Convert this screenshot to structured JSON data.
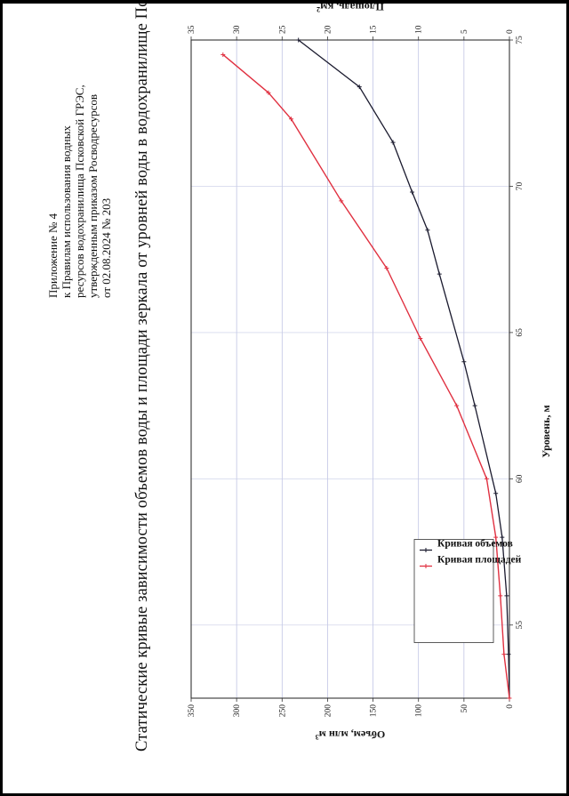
{
  "appendix": {
    "heading": "Приложение № 4",
    "lines": [
      "к    Правилам    использования    водных",
      "ресурсов водохранилища Псковской ГРЭС,",
      "утвержденным   приказом   Росводресурсов",
      "от 02.08.2024 № 203"
    ]
  },
  "title": "Статические кривые зависимости объемов воды и площади зеркала от уровней воды в водохранилище Псковской ГРЭС",
  "chart_data": {
    "type": "line",
    "y": {
      "label": "Уровень, м",
      "range": [
        52.5,
        75
      ],
      "ticks": [
        55,
        60,
        65,
        70,
        75
      ]
    },
    "x_top": {
      "label": "Объем, млн м",
      "label_sup": "3",
      "range": [
        0,
        350
      ],
      "ticks": [
        0,
        50,
        100,
        150,
        200,
        250,
        300,
        350
      ]
    },
    "x_bottom": {
      "label": "Площадь, км",
      "label_sup": "2",
      "range": [
        0,
        35
      ],
      "ticks": [
        0,
        5,
        10,
        15,
        20,
        25,
        30,
        35
      ]
    },
    "grid": true,
    "legend": {
      "position": "bottom-left"
    },
    "series": [
      {
        "name": "Кривая объемов",
        "axis": "x_top",
        "color": "#1a1a2e",
        "marker": "+",
        "points": [
          [
            0,
            52.5
          ],
          [
            1,
            54
          ],
          [
            3,
            56
          ],
          [
            8,
            58
          ],
          [
            15,
            59.5
          ],
          [
            38,
            62.5
          ],
          [
            50,
            64
          ],
          [
            77,
            67
          ],
          [
            90,
            68.5
          ],
          [
            107,
            69.8
          ],
          [
            128,
            71.5
          ],
          [
            165,
            73.4
          ],
          [
            232,
            75
          ]
        ]
      },
      {
        "name": "Кривая площадей",
        "axis": "x_bottom",
        "color": "#e03040",
        "marker": "+",
        "points": [
          [
            0,
            52.5
          ],
          [
            0.6,
            54
          ],
          [
            1,
            56
          ],
          [
            1.5,
            58
          ],
          [
            2.5,
            60
          ],
          [
            5.8,
            62.5
          ],
          [
            9.8,
            64.8
          ],
          [
            13.5,
            67.2
          ],
          [
            18.5,
            69.5
          ],
          [
            24,
            72.3
          ],
          [
            26.5,
            73.2
          ],
          [
            31.5,
            74.5
          ]
        ]
      }
    ]
  }
}
